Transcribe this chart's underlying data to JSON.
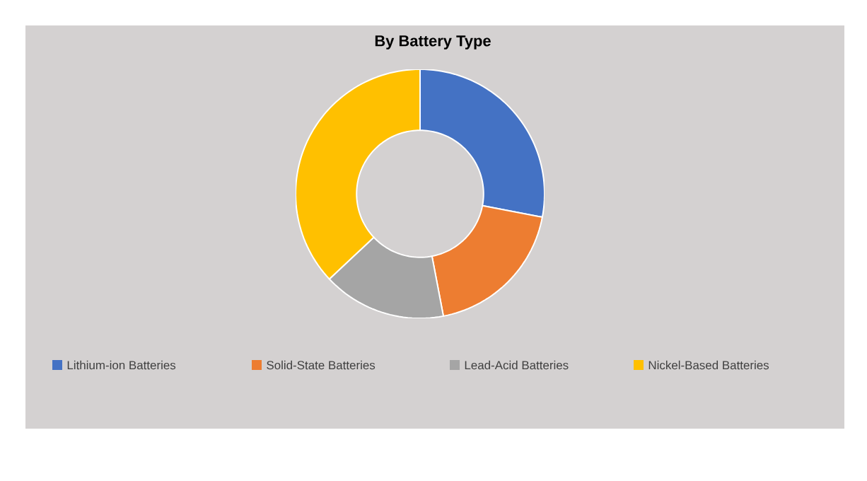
{
  "chart_data": {
    "type": "donut",
    "title": "By Battery Type",
    "categories": [
      "Lithium-ion Batteries",
      "Solid-State Batteries",
      "Lead-Acid Batteries",
      "Nickel-Based Batteries"
    ],
    "values": [
      28,
      19,
      16,
      37
    ],
    "colors": [
      "#4472c4",
      "#ed7d31",
      "#a5a5a5",
      "#ffc000"
    ],
    "legend": "bottom"
  }
}
